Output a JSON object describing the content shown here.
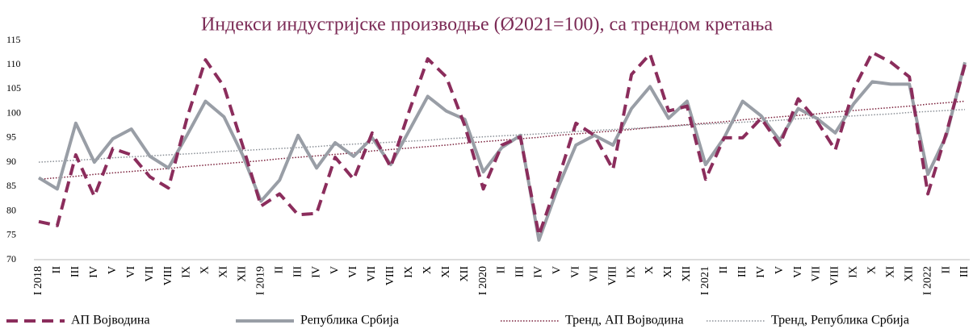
{
  "chart_data": {
    "type": "line",
    "title": "Индекси индустријске производње (Ø2021=100), са трендом кретања",
    "categories": [
      "I 2018",
      "II",
      "III",
      "IV",
      "V",
      "VI",
      "VII",
      "VIII",
      "IX",
      "X",
      "XI",
      "XII",
      "I 2019",
      "II",
      "III",
      "IV",
      "V",
      "VI",
      "VII",
      "VIII",
      "IX",
      "X",
      "XI",
      "XII",
      "I 2020",
      "II",
      "III",
      "IV",
      "V",
      "VI",
      "VII",
      "VIII",
      "IX",
      "X",
      "XI",
      "XII",
      "I 2021",
      "II",
      "III",
      "IV",
      "V",
      "VI",
      "VII",
      "VIII",
      "IX",
      "X",
      "XI",
      "XII",
      "I 2022",
      "II",
      "III"
    ],
    "series": [
      {
        "name": "АП Војводина",
        "color": "#8b2d5c",
        "style": "dashed",
        "values": [
          77.8,
          77,
          91.5,
          83,
          92.8,
          91.5,
          87,
          84.7,
          99,
          111,
          105.5,
          93.5,
          81,
          83.5,
          79.2,
          79.5,
          91,
          86.5,
          96,
          89,
          100.5,
          111.2,
          107.5,
          97.5,
          84.5,
          93.5,
          95.2,
          75,
          86,
          98,
          95.5,
          88.5,
          108,
          112.2,
          100.5,
          101.5,
          86.5,
          95,
          95,
          99,
          93.5,
          103,
          98.5,
          92.5,
          105,
          112.5,
          110.5,
          107.5,
          83.5,
          96,
          110
        ]
      },
      {
        "name": "Република Србија",
        "color": "#999ea6",
        "style": "solid",
        "values": [
          86.8,
          84.5,
          98,
          90,
          94.8,
          96.8,
          91.2,
          88.8,
          95.5,
          102.5,
          99.3,
          91.5,
          82,
          86.3,
          95.5,
          88.8,
          94,
          91.2,
          95,
          89.5,
          96.5,
          103.5,
          100.5,
          98.8,
          88,
          93,
          95.5,
          74,
          84.5,
          93.5,
          95.5,
          93.5,
          101,
          105.5,
          99,
          102.5,
          89.5,
          95,
          102.5,
          99.5,
          94.5,
          101,
          99,
          96,
          102,
          106.5,
          106,
          106,
          87.5,
          95.5,
          110.5
        ]
      },
      {
        "name": "Тренд, АП Војводина",
        "color": "#7a1f3a",
        "style": "dotted",
        "values": [
          86.5,
          86.8,
          87.1,
          87.5,
          87.8,
          88.1,
          88.4,
          88.7,
          89.1,
          89.4,
          89.7,
          90.0,
          90.3,
          90.7,
          91.0,
          91.3,
          91.6,
          91.9,
          92.3,
          92.6,
          92.9,
          93.2,
          93.5,
          93.9,
          94.2,
          94.5,
          94.8,
          95.1,
          95.5,
          95.8,
          96.1,
          96.4,
          96.7,
          97.1,
          97.4,
          97.7,
          98.0,
          98.3,
          98.7,
          99.0,
          99.3,
          99.6,
          99.9,
          100.3,
          100.6,
          100.9,
          101.2,
          101.5,
          101.9,
          102.2,
          102.5
        ]
      },
      {
        "name": "Тренд, Република Србија",
        "color": "#8a8f96",
        "style": "dotted",
        "values": [
          90.0,
          90.2,
          90.4,
          90.6,
          90.9,
          91.1,
          91.3,
          91.5,
          91.7,
          91.9,
          92.2,
          92.4,
          92.6,
          92.8,
          93.0,
          93.2,
          93.5,
          93.7,
          93.9,
          94.1,
          94.3,
          94.5,
          94.8,
          95.0,
          95.2,
          95.4,
          95.6,
          95.8,
          96.0,
          96.3,
          96.5,
          96.7,
          96.9,
          97.1,
          97.3,
          97.6,
          97.8,
          98.0,
          98.2,
          98.4,
          98.6,
          98.9,
          99.1,
          99.3,
          99.5,
          99.7,
          99.9,
          100.2,
          100.4,
          100.6,
          100.8
        ]
      }
    ],
    "ylim": [
      70,
      115
    ],
    "yticks": [
      70,
      75,
      80,
      85,
      90,
      95,
      100,
      105,
      110,
      115
    ],
    "grid": false,
    "legend": "bottom"
  }
}
